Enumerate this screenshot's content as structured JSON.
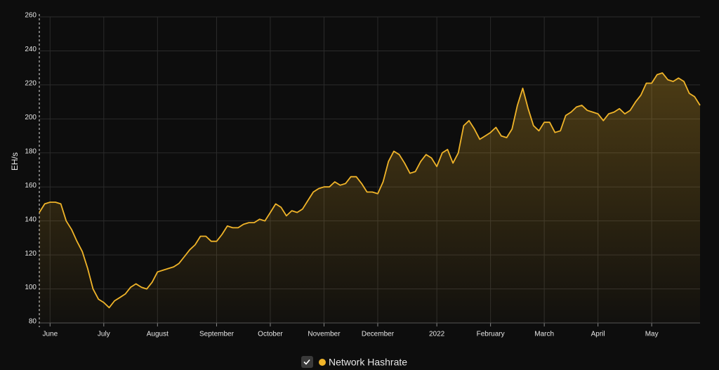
{
  "chart_data": {
    "type": "area",
    "ylabel": "EH/s",
    "categories": [
      null,
      null,
      "June",
      null,
      null,
      null,
      null,
      null,
      null,
      null,
      null,
      null,
      "July",
      null,
      null,
      null,
      null,
      null,
      null,
      null,
      null,
      null,
      "August",
      null,
      null,
      null,
      null,
      null,
      null,
      null,
      null,
      null,
      null,
      "September",
      null,
      null,
      null,
      null,
      null,
      null,
      null,
      null,
      null,
      "October",
      null,
      null,
      null,
      null,
      null,
      null,
      null,
      null,
      null,
      "November",
      null,
      null,
      null,
      null,
      null,
      null,
      null,
      null,
      null,
      "December",
      null,
      null,
      null,
      null,
      null,
      null,
      null,
      null,
      null,
      null,
      "2022",
      null,
      null,
      null,
      null,
      null,
      null,
      null,
      null,
      null,
      "February",
      null,
      null,
      null,
      null,
      null,
      null,
      null,
      null,
      null,
      "March",
      null,
      null,
      null,
      null,
      null,
      null,
      null,
      null,
      null,
      "April",
      null,
      null,
      null,
      null,
      null,
      null,
      null,
      null,
      null,
      "May",
      null,
      null,
      null,
      null,
      null,
      null,
      null,
      null,
      null
    ],
    "series": [
      {
        "name": "Network Hashrate",
        "color": "#f0b429",
        "values": [
          145,
          150,
          151,
          151,
          150,
          140,
          135,
          128,
          122,
          112,
          100,
          94,
          92,
          89,
          93,
          95,
          97,
          101,
          103,
          101,
          100,
          104,
          110,
          111,
          112,
          113,
          115,
          119,
          123,
          126,
          131,
          131,
          128,
          128,
          132,
          137,
          136,
          136,
          138,
          139,
          139,
          141,
          140,
          145,
          150,
          148,
          143,
          146,
          145,
          147,
          152,
          157,
          159,
          160,
          160,
          163,
          161,
          162,
          166,
          166,
          162,
          157,
          157,
          156,
          163,
          175,
          181,
          179,
          174,
          168,
          169,
          175,
          179,
          177,
          172,
          180,
          182,
          174,
          180,
          196,
          199,
          194,
          188,
          190,
          192,
          195,
          190,
          189,
          194,
          208,
          218,
          206,
          196,
          193,
          198,
          198,
          192,
          193,
          202,
          204,
          207,
          208,
          205,
          204,
          203,
          199,
          203,
          204,
          206,
          203,
          205,
          210,
          214,
          221,
          221,
          226,
          227,
          223,
          222,
          224,
          222,
          215,
          213,
          208
        ]
      }
    ],
    "ylim": [
      80,
      260
    ],
    "yticks": [
      80,
      100,
      120,
      140,
      160,
      180,
      200,
      220,
      240,
      260
    ],
    "grid": true,
    "legend": "bottom"
  }
}
